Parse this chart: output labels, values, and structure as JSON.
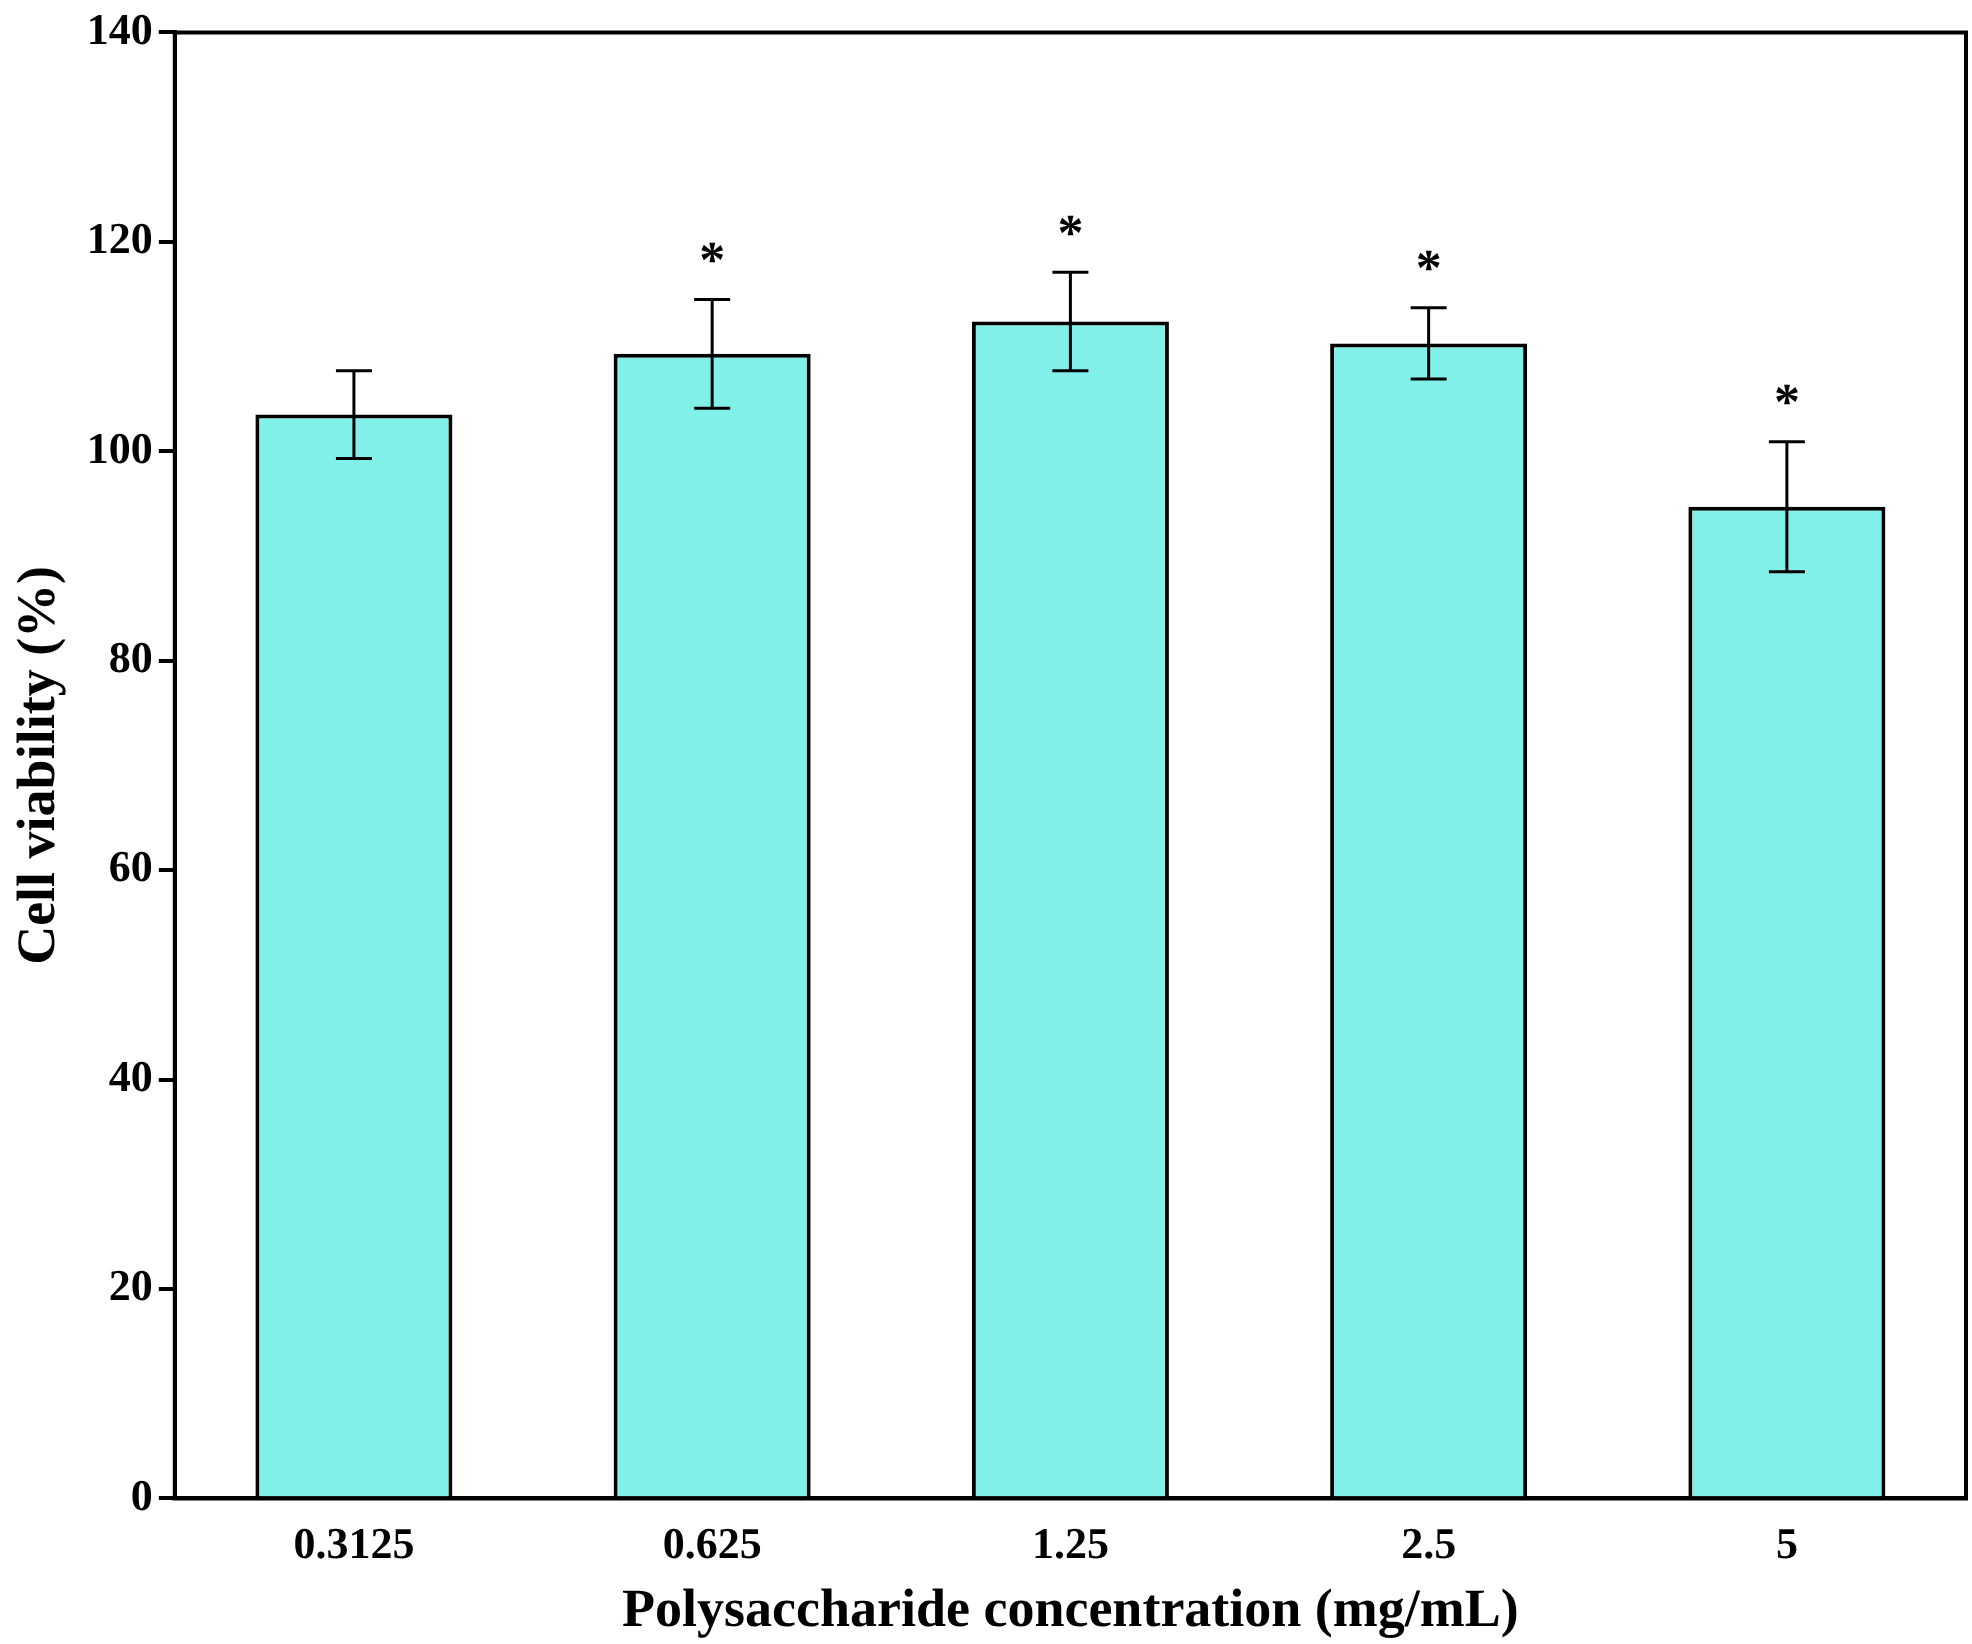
{
  "chart_data": {
    "type": "bar",
    "xlabel": "Polysaccharide concentration (mg/mL)",
    "ylabel": "Cell viability (%)",
    "categories": [
      "0.3125",
      "0.625",
      "1.25",
      "2.5",
      "5"
    ],
    "values": [
      103.5,
      109.3,
      112.4,
      110.3,
      94.7
    ],
    "errors": [
      4.2,
      5.2,
      4.7,
      3.4,
      6.2
    ],
    "color": "#80f0e8",
    "ylim": [
      0,
      140
    ],
    "yticks": [
      0,
      20,
      40,
      60,
      80,
      100,
      120,
      140
    ],
    "grid": false,
    "annotations": [
      "*",
      "*",
      "*",
      "*"
    ]
  }
}
